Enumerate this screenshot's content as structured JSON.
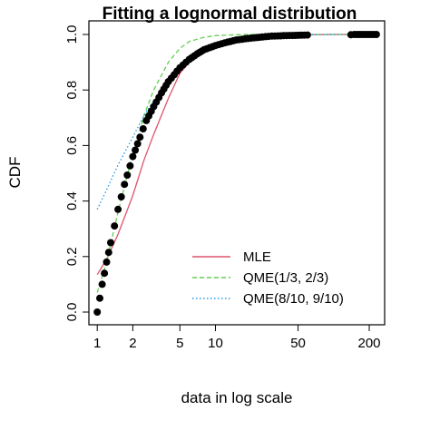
{
  "chart_data": {
    "type": "line",
    "title": "Fitting a lognormal distribution",
    "xlabel": "data in log scale",
    "ylabel": "CDF",
    "x_scale": "log",
    "xlim": [
      0.85,
      270
    ],
    "ylim": [
      0,
      1
    ],
    "x_ticks": [
      1,
      2,
      5,
      10,
      50,
      200
    ],
    "x_tick_labels": [
      "1",
      "2",
      "5",
      "10",
      "50",
      "200"
    ],
    "y_ticks": [
      0.0,
      0.2,
      0.4,
      0.6,
      0.8,
      1.0
    ],
    "y_tick_labels": [
      "0.0",
      "0.2",
      "0.4",
      "0.6",
      "0.8",
      "1.0"
    ],
    "grid": false,
    "legend_position": "bottom-right",
    "empirical": {
      "x": [
        1.0,
        1.05,
        1.1,
        1.2,
        1.3,
        1.4,
        1.5,
        1.7,
        2.0,
        2.3,
        2.6,
        3.0,
        3.5,
        4.0,
        5.0,
        6.0,
        7.0,
        8.0,
        10.0,
        12.0,
        15.0,
        20.0,
        25.0,
        30.0,
        40.0,
        50.0,
        60.0,
        140.0,
        150.0,
        230.0
      ],
      "y": [
        0.0,
        0.05,
        0.1,
        0.18,
        0.25,
        0.31,
        0.37,
        0.46,
        0.56,
        0.63,
        0.69,
        0.74,
        0.79,
        0.83,
        0.88,
        0.91,
        0.93,
        0.945,
        0.96,
        0.97,
        0.98,
        0.987,
        0.991,
        0.994,
        0.996,
        0.997,
        0.998,
        0.999,
        1.0,
        1.0
      ]
    },
    "series": [
      {
        "name": "MLE",
        "color": "#DF536B",
        "dash": "solid",
        "x": [
          1.0,
          1.2,
          1.5,
          2.0,
          2.5,
          3.0,
          4.0,
          5.0,
          6.0,
          8.0,
          10.0,
          15.0,
          20.0,
          30.0,
          50.0,
          100.0,
          230.0
        ],
        "y": [
          0.135,
          0.19,
          0.28,
          0.42,
          0.55,
          0.64,
          0.77,
          0.86,
          0.9,
          0.94,
          0.965,
          0.985,
          0.993,
          0.997,
          0.999,
          1.0,
          1.0
        ]
      },
      {
        "name": "QME(1/3, 2/3)",
        "color": "#61D04F",
        "dash": "dashed",
        "x": [
          1.0,
          1.2,
          1.5,
          2.0,
          2.5,
          3.0,
          4.0,
          5.0,
          6.0,
          8.0,
          10.0,
          15.0,
          20.0,
          50.0,
          230.0
        ],
        "y": [
          0.07,
          0.18,
          0.36,
          0.57,
          0.71,
          0.8,
          0.9,
          0.95,
          0.975,
          0.99,
          0.996,
          0.999,
          1.0,
          1.0,
          1.0
        ]
      },
      {
        "name": "QME(8/10, 9/10)",
        "color": "#2297E6",
        "dash": "dotted",
        "x": [
          1.0,
          1.2,
          1.5,
          2.0,
          2.5,
          3.0,
          4.0,
          5.0,
          6.0,
          8.0,
          10.0,
          15.0,
          20.0,
          50.0,
          100.0,
          230.0
        ],
        "y": [
          0.37,
          0.44,
          0.53,
          0.63,
          0.71,
          0.76,
          0.83,
          0.88,
          0.91,
          0.945,
          0.963,
          0.983,
          0.991,
          0.998,
          1.0,
          1.0
        ]
      }
    ]
  }
}
